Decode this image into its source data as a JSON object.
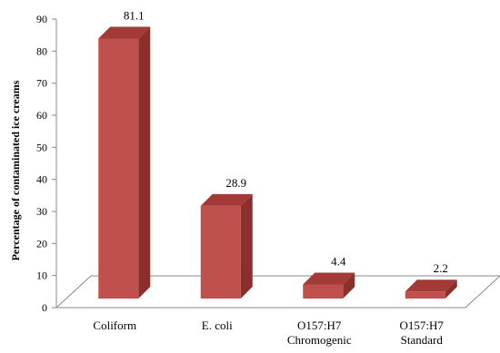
{
  "chart_data": {
    "type": "bar",
    "title": "",
    "xlabel": "",
    "ylabel": "Percentage of contaminated ice creams",
    "categories": [
      [
        "Coliform"
      ],
      [
        "E. coli"
      ],
      [
        "O157:H7",
        "Chromogenic"
      ],
      [
        "O157:H7",
        "Standard"
      ]
    ],
    "values": [
      81.1,
      28.9,
      4.4,
      2.2
    ],
    "data_labels": [
      "81.1",
      "28.9",
      "4.4",
      "2.2"
    ],
    "ylim": [
      0,
      90
    ],
    "yticks": [
      "0",
      "10",
      "20",
      "30",
      "40",
      "50",
      "60",
      "70",
      "80",
      "90"
    ],
    "grid": false,
    "legend": "none",
    "style": "3d-column",
    "colors": {
      "bar_front": "#c0504d",
      "bar_side": "#8b2f2c",
      "bar_top": "#a23a37",
      "floor_edge": "#888888"
    }
  }
}
